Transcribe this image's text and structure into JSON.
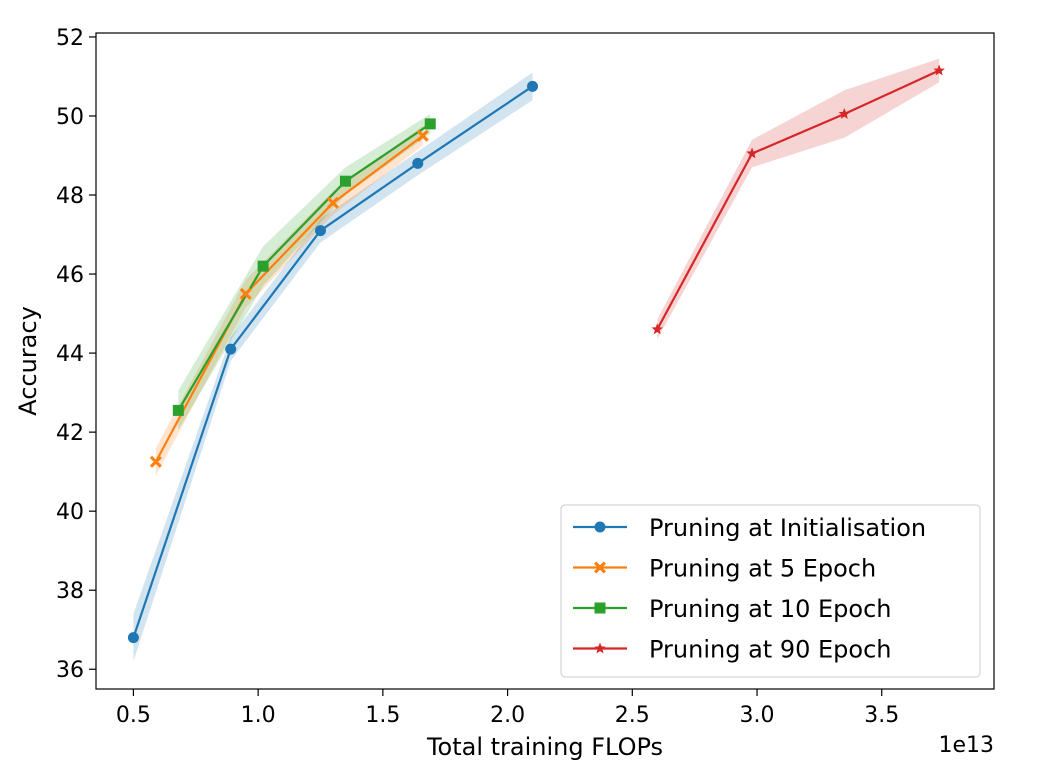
{
  "chart_data": {
    "type": "line",
    "title": "",
    "xlabel": "Total training FLOPs",
    "ylabel": "Accuracy",
    "x_offset_label": "1e13",
    "xlim": [
      0.35,
      3.95
    ],
    "ylim": [
      35.5,
      52.1
    ],
    "x_ticks": [
      0.5,
      1.0,
      1.5,
      2.0,
      2.5,
      3.0,
      3.5
    ],
    "x_tick_labels": [
      "0.5",
      "1.0",
      "1.5",
      "2.0",
      "2.5",
      "3.0",
      "3.5"
    ],
    "y_ticks": [
      36,
      38,
      40,
      42,
      44,
      46,
      48,
      50,
      52
    ],
    "y_tick_labels": [
      "36",
      "38",
      "40",
      "42",
      "44",
      "46",
      "48",
      "50",
      "52"
    ],
    "grid": false,
    "legend_position": "bottom-right",
    "series": [
      {
        "name": "Pruning at Initialisation",
        "color": "#1f77b4",
        "marker": "circle",
        "x": [
          0.5,
          0.89,
          1.25,
          1.64,
          2.1
        ],
        "y": [
          36.8,
          44.1,
          47.1,
          48.8,
          50.75
        ],
        "band": [
          0.6,
          0.3,
          0.3,
          0.3,
          0.35
        ]
      },
      {
        "name": "Pruning at 5 Epoch",
        "color": "#ff7f0e",
        "marker": "x",
        "x": [
          0.59,
          0.95,
          1.3,
          1.66
        ],
        "y": [
          41.25,
          45.5,
          47.8,
          49.5
        ],
        "band": [
          0.35,
          0.35,
          0.3,
          0.25
        ]
      },
      {
        "name": "Pruning at 10 Epoch",
        "color": "#2ca02c",
        "marker": "square",
        "x": [
          0.68,
          1.02,
          1.35,
          1.69
        ],
        "y": [
          42.55,
          46.2,
          48.35,
          49.8
        ],
        "band": [
          0.5,
          0.5,
          0.35,
          0.25
        ]
      },
      {
        "name": "Pruning at 90 Epoch",
        "color": "#d62728",
        "marker": "star",
        "x": [
          2.6,
          2.98,
          3.35,
          3.73
        ],
        "y": [
          44.6,
          49.05,
          50.05,
          51.15
        ],
        "band": [
          0.25,
          0.35,
          0.6,
          0.3
        ]
      }
    ]
  }
}
